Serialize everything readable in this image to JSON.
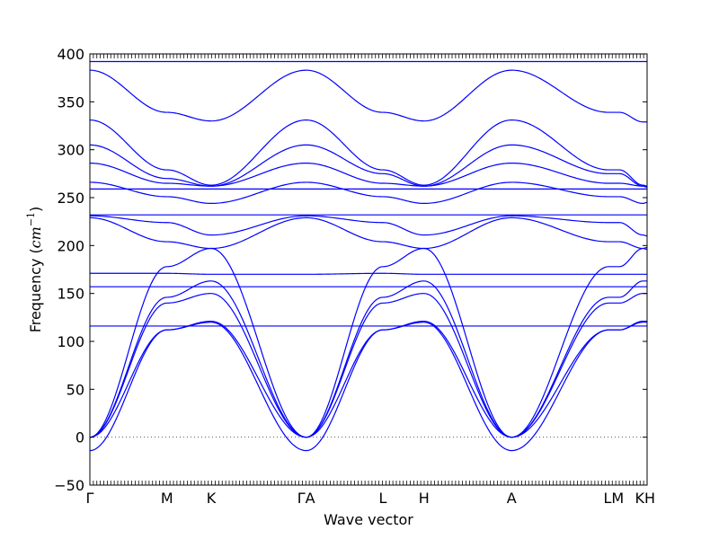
{
  "chart_data": {
    "type": "line",
    "title": "",
    "xlabel": "Wave vector",
    "ylabel_text": "Frequency (",
    "ylabel_unit": "cm",
    "ylabel_exp": "−1",
    "ylabel_close": ")",
    "ylim": [
      -50,
      400
    ],
    "yticks": [
      -50,
      0,
      50,
      100,
      150,
      200,
      250,
      300,
      350,
      400
    ],
    "ytick_labels": [
      "−50",
      "0",
      "50",
      "100",
      "150",
      "200",
      "250",
      "300",
      "350",
      "400"
    ],
    "path_points": [
      0,
      0.1383,
      0.2177,
      0.3882,
      0.5257,
      0.5996,
      0.7569,
      0.9314,
      0.9502,
      0.9928,
      1
    ],
    "xtick_labels": [
      "Γ",
      "M",
      "K",
      "ΓA",
      "L",
      "H",
      "A",
      "LM",
      "KH"
    ],
    "xtick_positions": [
      0,
      0.1383,
      0.2177,
      0.3882,
      0.5257,
      0.5996,
      0.7569,
      0.9401,
      0.9964
    ],
    "line_color": "#0000ff",
    "zero_line": {
      "value": 0,
      "style": "dotted",
      "color": "#555555"
    },
    "branches": [
      {
        "name": "",
        "values": [
          392,
          392,
          392,
          392,
          392,
          392,
          392,
          392,
          392,
          392,
          392
        ]
      },
      {
        "name": "",
        "values": [
          383,
          339,
          330,
          383,
          339,
          330,
          383,
          339,
          339,
          329,
          329
        ]
      },
      {
        "name": "",
        "values": [
          331,
          279,
          263,
          331,
          279,
          263,
          331,
          279,
          279,
          263,
          262
        ]
      },
      {
        "name": "",
        "values": [
          305,
          270,
          262,
          305,
          275,
          262,
          305,
          275,
          275,
          262,
          261
        ]
      },
      {
        "name": "",
        "values": [
          286,
          265,
          262,
          286,
          265,
          262,
          286,
          265,
          265,
          262,
          261
        ]
      },
      {
        "name": "",
        "values": [
          266,
          251,
          244,
          266,
          251,
          244,
          266,
          251,
          251,
          244,
          245
        ]
      },
      {
        "name": "",
        "values": [
          259,
          259,
          259,
          259,
          259,
          259,
          259,
          259,
          259,
          259,
          259
        ]
      },
      {
        "name": "",
        "values": [
          232,
          232,
          232,
          232,
          232,
          232,
          232,
          232,
          232,
          232,
          232
        ]
      },
      {
        "name": "",
        "values": [
          231,
          224,
          211,
          231,
          224,
          211,
          231,
          224,
          224,
          211,
          210
        ]
      },
      {
        "name": "",
        "values": [
          229,
          204,
          197,
          229,
          204,
          197,
          229,
          204,
          204,
          197,
          198
        ]
      },
      {
        "name": "",
        "values": [
          0,
          178,
          197,
          0,
          178,
          197,
          0,
          178,
          178,
          197,
          196
        ]
      },
      {
        "name": "",
        "values": [
          171,
          171,
          170,
          170,
          171,
          170,
          170,
          170,
          170,
          170,
          170
        ]
      },
      {
        "name": "",
        "values": [
          157,
          157,
          157,
          157,
          157,
          157,
          157,
          157,
          157,
          157,
          157
        ]
      },
      {
        "name": "",
        "values": [
          0,
          146,
          163,
          0,
          146,
          163,
          0,
          146,
          146,
          163,
          163
        ]
      },
      {
        "name": "",
        "values": [
          0,
          140,
          150,
          0,
          140,
          150,
          0,
          140,
          140,
          150,
          150
        ]
      },
      {
        "name": "",
        "values": [
          116,
          116,
          116,
          116,
          116,
          116,
          116,
          116,
          116,
          116,
          116
        ]
      },
      {
        "name": "",
        "values": [
          0,
          112,
          121,
          0,
          112,
          121,
          0,
          112,
          112,
          121,
          121
        ]
      },
      {
        "name": "",
        "values": [
          -14,
          112,
          120,
          -14,
          112,
          120,
          -14,
          112,
          112,
          120,
          120
        ]
      }
    ]
  }
}
